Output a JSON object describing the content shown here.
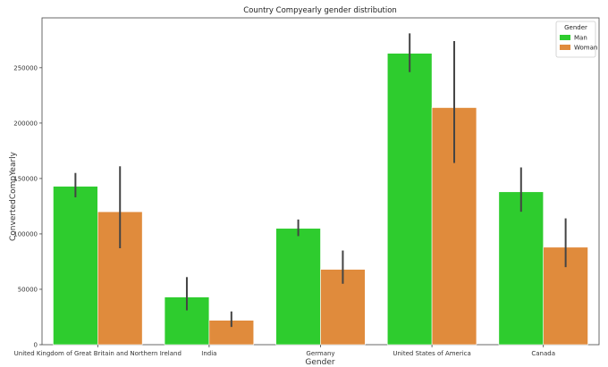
{
  "chart_data": {
    "type": "bar",
    "title": "Country Compyearly gender distribution",
    "xlabel": "Gender",
    "ylabel": "ConvertedCompYearly",
    "categories": [
      "United Kingdom of Great Britain and Northern Ireland",
      "India",
      "Germany",
      "United States of America",
      "Canada"
    ],
    "series": [
      {
        "name": "Man",
        "color": "#2ecc2e",
        "values": [
          143000,
          43000,
          105000,
          263000,
          138000
        ],
        "ci_low": [
          133000,
          31000,
          98000,
          246000,
          120000
        ],
        "ci_high": [
          155000,
          61000,
          113000,
          281000,
          160000
        ]
      },
      {
        "name": "Woman",
        "color": "#e08b3c",
        "values": [
          120000,
          22000,
          68000,
          214000,
          88000
        ],
        "ci_low": [
          87000,
          16000,
          55000,
          164000,
          70000
        ],
        "ci_high": [
          161000,
          30000,
          85000,
          274000,
          114000
        ]
      }
    ],
    "yticks": [
      0,
      50000,
      100000,
      150000,
      200000,
      250000
    ],
    "ytick_labels": [
      "0",
      "50000",
      "100000",
      "150000",
      "200000",
      "250000"
    ],
    "ylim": [
      0,
      295000
    ],
    "grid": false,
    "legend": {
      "title": "Gender",
      "placement": "top-right"
    }
  }
}
